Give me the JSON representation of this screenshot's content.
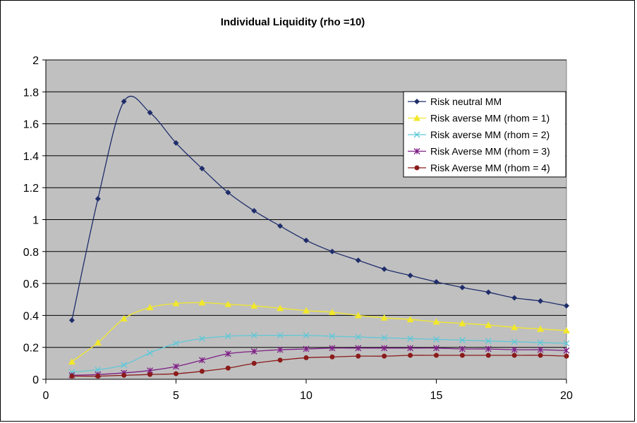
{
  "chart_data": {
    "type": "line",
    "title": "Individual Liquidity (rho =10)",
    "xlabel": "",
    "ylabel": "",
    "xlim": [
      0,
      20
    ],
    "ylim": [
      0,
      2
    ],
    "xticks": [
      0,
      5,
      10,
      15,
      20
    ],
    "yticks": [
      0,
      0.2,
      0.4,
      0.6,
      0.8,
      1,
      1.2,
      1.4,
      1.6,
      1.8,
      2
    ],
    "grid": true,
    "legend_position": "top-right",
    "x": [
      1,
      2,
      3,
      4,
      5,
      6,
      7,
      8,
      9,
      10,
      11,
      12,
      13,
      14,
      15,
      16,
      17,
      18,
      19,
      20
    ],
    "series": [
      {
        "name": "Risk neutral MM",
        "color": "#1F2D6B",
        "marker": "diamond",
        "values": [
          0.37,
          1.13,
          1.74,
          1.67,
          1.48,
          1.32,
          1.17,
          1.055,
          0.96,
          0.87,
          0.8,
          0.745,
          0.69,
          0.65,
          0.61,
          0.575,
          0.545,
          0.51,
          0.49,
          0.46
        ]
      },
      {
        "name": "Risk averse MM (rhom = 1)",
        "color": "#F2E82A",
        "marker": "triangle",
        "values": [
          0.11,
          0.23,
          0.38,
          0.45,
          0.475,
          0.48,
          0.47,
          0.46,
          0.445,
          0.43,
          0.42,
          0.4,
          0.385,
          0.375,
          0.36,
          0.35,
          0.34,
          0.325,
          0.315,
          0.305
        ]
      },
      {
        "name": "Risk averse MM (rhom = 2)",
        "color": "#5EC8D8",
        "marker": "x",
        "values": [
          0.045,
          0.06,
          0.09,
          0.165,
          0.225,
          0.255,
          0.27,
          0.275,
          0.275,
          0.275,
          0.27,
          0.265,
          0.26,
          0.255,
          0.25,
          0.245,
          0.24,
          0.235,
          0.23,
          0.225
        ]
      },
      {
        "name": "Risk Averse MM (rhom = 3)",
        "color": "#7F1F86",
        "marker": "star",
        "values": [
          0.025,
          0.03,
          0.04,
          0.055,
          0.08,
          0.12,
          0.16,
          0.175,
          0.185,
          0.19,
          0.195,
          0.195,
          0.195,
          0.195,
          0.195,
          0.19,
          0.19,
          0.185,
          0.185,
          0.18
        ]
      },
      {
        "name": "Risk Averse MM (rhom = 4)",
        "color": "#8B1A1A",
        "marker": "circle",
        "values": [
          0.02,
          0.02,
          0.025,
          0.03,
          0.035,
          0.05,
          0.07,
          0.1,
          0.12,
          0.135,
          0.14,
          0.145,
          0.145,
          0.15,
          0.15,
          0.15,
          0.15,
          0.15,
          0.15,
          0.145
        ]
      }
    ]
  }
}
